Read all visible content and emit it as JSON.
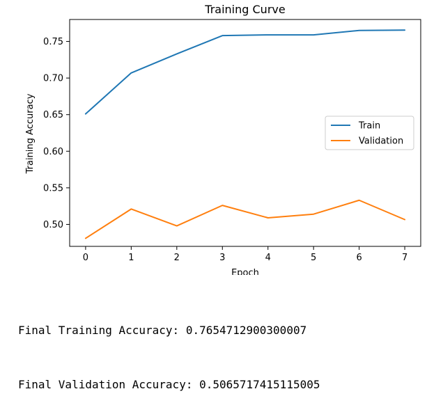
{
  "chart_data": {
    "type": "line",
    "title": "Training Curve",
    "xlabel": "Epoch",
    "ylabel": "Training Accuracy",
    "x": [
      0,
      1,
      2,
      3,
      4,
      5,
      6,
      7
    ],
    "xlim": [
      -0.35,
      7.35
    ],
    "ylim": [
      0.47,
      0.78
    ],
    "xticks": [
      0,
      1,
      2,
      3,
      4,
      5,
      6,
      7
    ],
    "xtick_labels": [
      "0",
      "1",
      "2",
      "3",
      "4",
      "5",
      "6",
      "7"
    ],
    "yticks": [
      0.5,
      0.55,
      0.6,
      0.65,
      0.7,
      0.75
    ],
    "ytick_labels": [
      "0.50",
      "0.55",
      "0.60",
      "0.65",
      "0.70",
      "0.75"
    ],
    "grid": false,
    "legend_position": "center-right",
    "series": [
      {
        "name": "Train",
        "color": "#1f77b4",
        "values": [
          0.651,
          0.707,
          0.733,
          0.758,
          0.759,
          0.759,
          0.765,
          0.7655
        ]
      },
      {
        "name": "Validation",
        "color": "#ff7f0e",
        "values": [
          0.481,
          0.521,
          0.498,
          0.526,
          0.509,
          0.514,
          0.533,
          0.5066
        ]
      }
    ]
  },
  "output": {
    "lines": [
      "Final Training Accuracy: 0.7654712900300007",
      "Final Validation Accuracy: 0.5065717415115005"
    ]
  }
}
